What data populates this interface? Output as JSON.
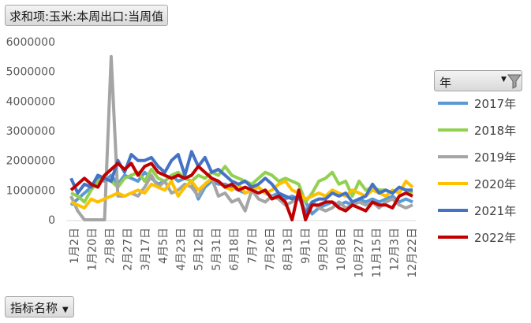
{
  "title_field": "求和项:玉米:本周出口:当周值",
  "axis_field": "指标名称",
  "legend_field": "年",
  "icons": {
    "filter": "filter-icon",
    "dropdown": "dropdown-arrow-icon"
  },
  "chart_data": {
    "type": "line",
    "title": "",
    "xlabel": "",
    "ylabel": "",
    "ylim": [
      0,
      6000000
    ],
    "yticks": [
      "0",
      "1000000",
      "2000000",
      "3000000",
      "4000000",
      "5000000",
      "6000000"
    ],
    "grid": false,
    "legend_position": "right",
    "x_tick_labels": [
      "1月2日",
      "1月20日",
      "2月8日",
      "2月27日",
      "3月17日",
      "4月5日",
      "4月23日",
      "5月12日",
      "5月31日",
      "6月18日",
      "7月7日",
      "7月26日",
      "8月13日",
      "9月1日",
      "9月20日",
      "10月8日",
      "10月27日",
      "11月15日",
      "12月3日",
      "12月22日"
    ],
    "series": [
      {
        "name": "2017年",
        "color": "#5B9BD5",
        "values": [
          500000,
          700000,
          900000,
          1100000,
          1400000,
          1300000,
          1500000,
          1200000,
          1500000,
          1400000,
          1300000,
          1600000,
          1400000,
          1200000,
          1300000,
          1500000,
          1300000,
          1400000,
          1300000,
          700000,
          1100000,
          1300000,
          1200000,
          1200000,
          1100000,
          1000000,
          900000,
          1000000,
          1100000,
          900000,
          800000,
          900000,
          700000,
          800000,
          700000,
          600000,
          200000,
          400000,
          500000,
          600000,
          500000,
          600000,
          500000,
          700000,
          600000,
          700000,
          600000,
          700000,
          800000,
          600000,
          700000,
          600000
        ]
      },
      {
        "name": "2018年",
        "color": "#92D050",
        "values": [
          900000,
          800000,
          600000,
          1000000,
          1300000,
          1400000,
          1300000,
          1100000,
          1400000,
          1500000,
          1600000,
          1300000,
          1700000,
          1400000,
          1300000,
          1500000,
          1600000,
          1400000,
          1300000,
          1500000,
          1400000,
          1600000,
          1500000,
          1800000,
          1500000,
          1400000,
          1300000,
          1200000,
          1400000,
          1600000,
          1500000,
          1300000,
          1400000,
          1300000,
          1200000,
          600000,
          900000,
          1300000,
          1400000,
          1600000,
          1200000,
          1300000,
          800000,
          1300000,
          1000000,
          1100000,
          1000000,
          1000000,
          900000,
          1100000,
          1000000,
          900000
        ]
      },
      {
        "name": "2019年",
        "color": "#A5A5A5",
        "values": [
          800000,
          300000,
          0,
          0,
          0,
          0,
          5500000,
          800000,
          800000,
          900000,
          800000,
          1100000,
          1500000,
          1100000,
          1300000,
          900000,
          1000000,
          1200000,
          1100000,
          800000,
          1200000,
          1400000,
          800000,
          900000,
          600000,
          700000,
          300000,
          1000000,
          700000,
          600000,
          800000,
          700000,
          500000,
          600000,
          800000,
          300000,
          600000,
          400000,
          300000,
          400000,
          600000,
          400000,
          500000,
          600000,
          500000,
          600000,
          400000,
          600000,
          700000,
          500000,
          400000,
          500000
        ]
      },
      {
        "name": "2020年",
        "color": "#FFC000",
        "values": [
          600000,
          500000,
          400000,
          700000,
          600000,
          700000,
          800000,
          900000,
          800000,
          900000,
          1000000,
          900000,
          1200000,
          1100000,
          1000000,
          1300000,
          800000,
          1100000,
          1300000,
          1000000,
          1200000,
          1400000,
          1300000,
          1100000,
          1000000,
          1200000,
          900000,
          1000000,
          1100000,
          900000,
          1000000,
          1200000,
          1300000,
          1000000,
          900000,
          700000,
          800000,
          900000,
          800000,
          1000000,
          900000,
          800000,
          1000000,
          900000,
          800000,
          1000000,
          900000,
          800000,
          1000000,
          900000,
          1300000,
          1100000
        ]
      },
      {
        "name": "2021年",
        "color": "#4472C4",
        "values": [
          1400000,
          900000,
          1200000,
          1100000,
          1500000,
          1400000,
          1300000,
          2000000,
          1600000,
          2200000,
          2000000,
          2000000,
          2100000,
          1800000,
          1600000,
          2000000,
          2200000,
          1500000,
          2300000,
          1800000,
          2100000,
          1600000,
          1700000,
          1500000,
          1300000,
          1200000,
          1300000,
          1100000,
          1200000,
          1400000,
          1200000,
          900000,
          800000,
          700000,
          800000,
          200000,
          600000,
          700000,
          700000,
          900000,
          800000,
          900000,
          600000,
          700000,
          800000,
          1200000,
          900000,
          1000000,
          900000,
          1100000,
          1000000,
          1000000
        ]
      },
      {
        "name": "2022年",
        "color": "#C00000",
        "values": [
          1000000,
          1200000,
          1400000,
          1200000,
          1100000,
          1500000,
          1700000,
          1900000,
          1700000,
          1900000,
          1500000,
          1800000,
          1900000,
          1600000,
          1500000,
          1400000,
          1500000,
          1400000,
          1500000,
          1800000,
          1600000,
          1400000,
          1300000,
          1100000,
          1200000,
          1000000,
          1100000,
          1000000,
          900000,
          1000000,
          700000,
          800000,
          600000,
          0,
          1000000,
          0,
          500000,
          500000,
          600000,
          600000,
          400000,
          300000,
          500000,
          400000,
          300000,
          600000,
          500000,
          500000,
          400000,
          800000,
          900000,
          800000
        ]
      }
    ]
  }
}
